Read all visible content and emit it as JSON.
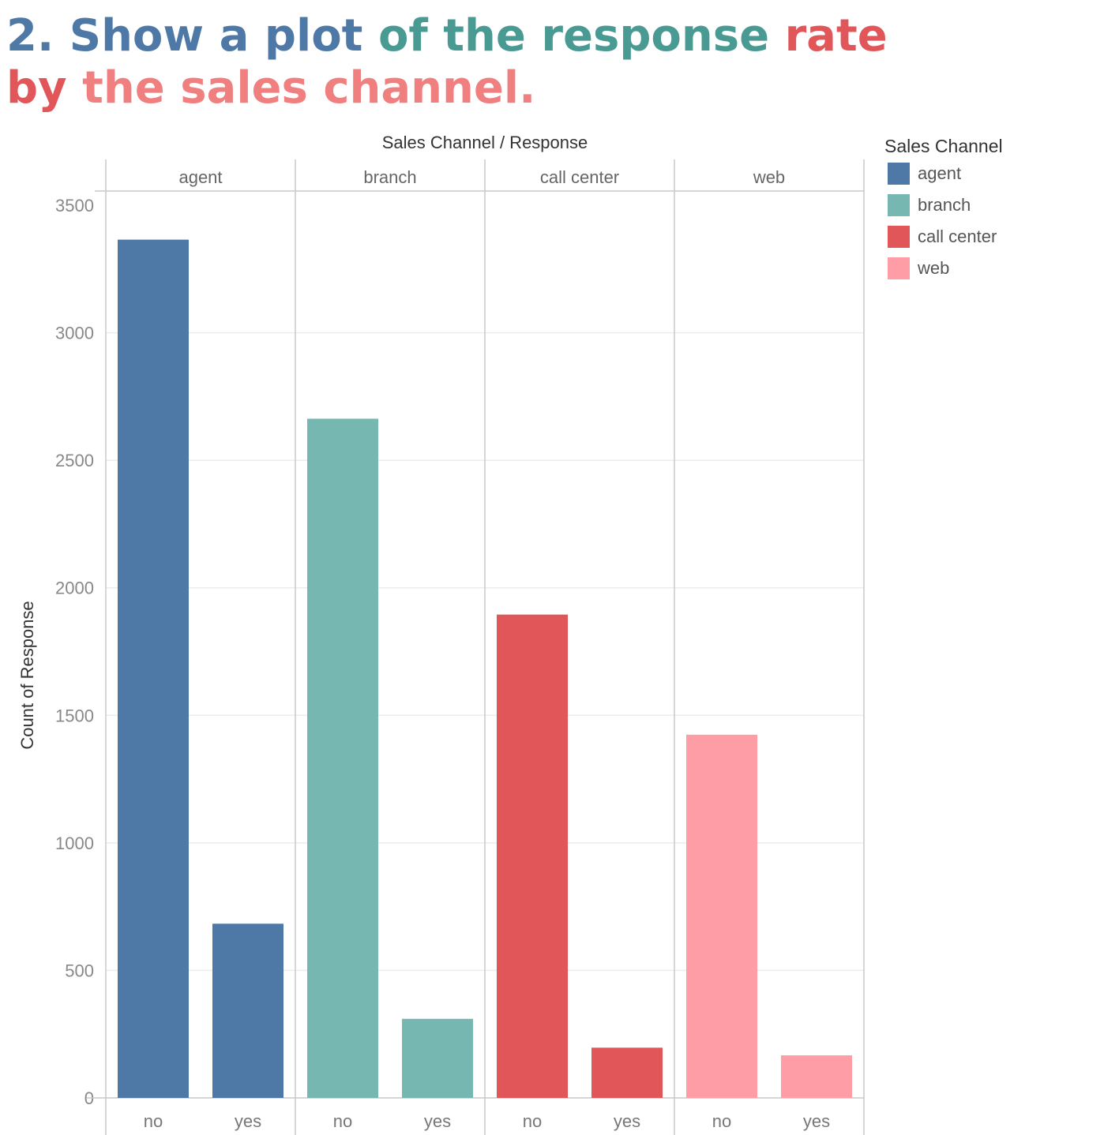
{
  "title": {
    "line1": [
      {
        "text": "2. Show a plot ",
        "color": "#4e79a7"
      },
      {
        "text": "of the response ",
        "color": "#4a9a94"
      },
      {
        "text": "rate",
        "color": "#e15759"
      }
    ],
    "line2": [
      {
        "text": "by ",
        "color": "#e15759"
      },
      {
        "text": "the sales channel.",
        "color": "#f08080"
      }
    ]
  },
  "column_header_title": "Sales Channel  /  Response",
  "legend": {
    "title": "Sales Channel",
    "items": [
      {
        "label": "agent",
        "color": "#4e79a7"
      },
      {
        "label": "branch",
        "color": "#76b7b2"
      },
      {
        "label": "call center",
        "color": "#e15759"
      },
      {
        "label": "web",
        "color": "#ff9da7"
      }
    ]
  },
  "chart_data": {
    "type": "bar",
    "title": "",
    "xlabel": "",
    "ylabel": "Count of Response",
    "ylim": [
      0,
      3500
    ],
    "yticks": [
      0,
      500,
      1000,
      1500,
      2000,
      2500,
      3000,
      3500
    ],
    "grid": true,
    "legend_position": "right",
    "panels": [
      {
        "channel": "agent",
        "color": "#4e79a7",
        "categories": [
          "no",
          "yes"
        ],
        "values": [
          3365,
          683
        ]
      },
      {
        "channel": "branch",
        "color": "#76b7b2",
        "categories": [
          "no",
          "yes"
        ],
        "values": [
          2663,
          310
        ]
      },
      {
        "channel": "call center",
        "color": "#e15759",
        "categories": [
          "no",
          "yes"
        ],
        "values": [
          1895,
          197
        ]
      },
      {
        "channel": "web",
        "color": "#ff9da7",
        "categories": [
          "no",
          "yes"
        ],
        "values": [
          1424,
          167
        ]
      }
    ]
  }
}
